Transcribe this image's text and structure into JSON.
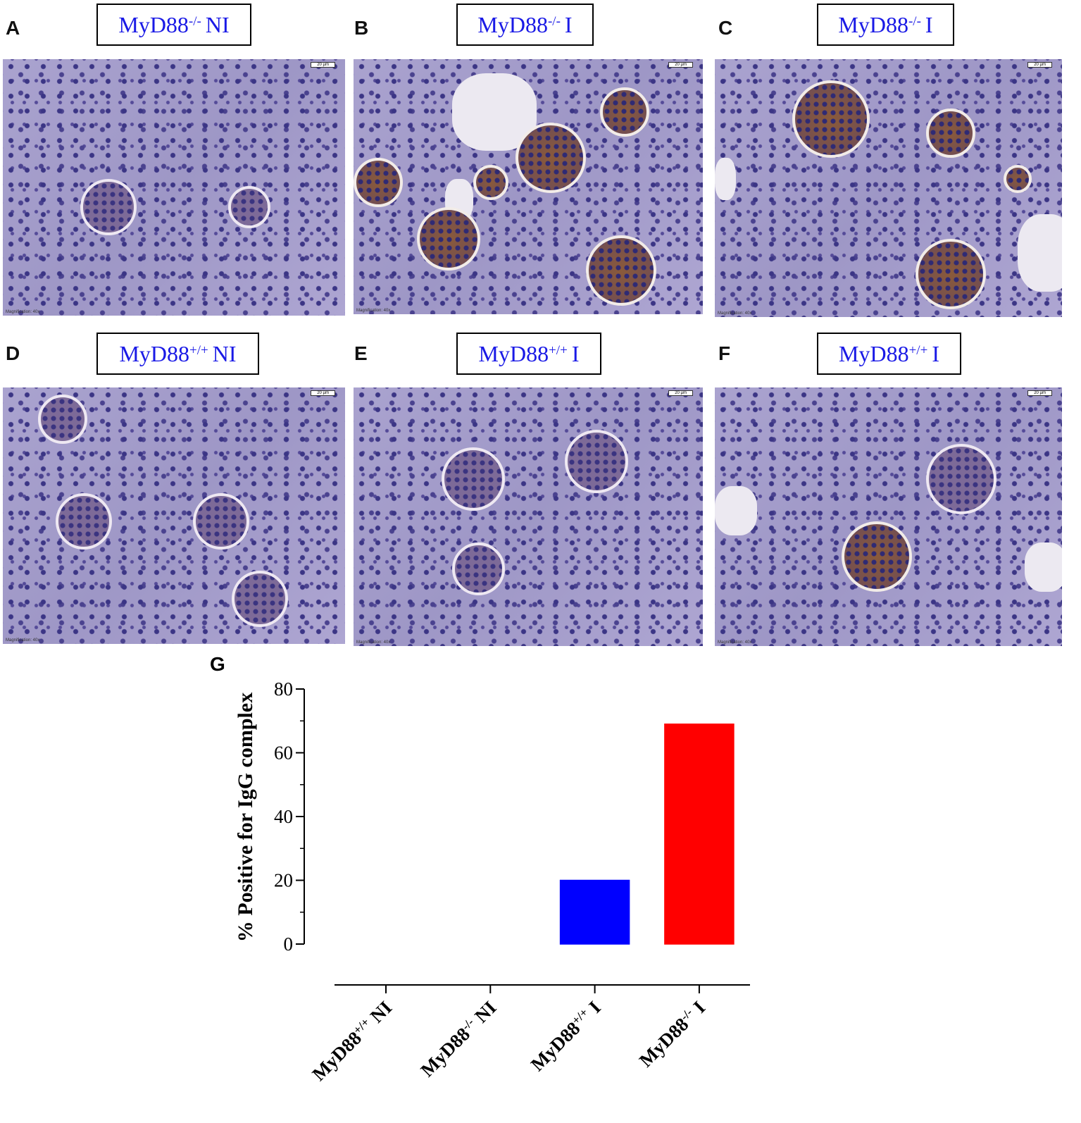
{
  "magnification": "Magnification: 40x",
  "scale_label": "20 µm",
  "panels": [
    {
      "letter": "A",
      "title": {
        "base": "MyD88",
        "sup": "-/-",
        "suffix": "NI"
      }
    },
    {
      "letter": "B",
      "title": {
        "base": "MyD88",
        "sup": "-/-",
        "suffix": "I"
      }
    },
    {
      "letter": "C",
      "title": {
        "base": "MyD88",
        "sup": "-/-",
        "suffix": "I"
      }
    },
    {
      "letter": "D",
      "title": {
        "base": "MyD88",
        "sup": "+/+",
        "suffix": "NI"
      }
    },
    {
      "letter": "E",
      "title": {
        "base": "MyD88",
        "sup": "+/+",
        "suffix": "I"
      }
    },
    {
      "letter": "F",
      "title": {
        "base": "MyD88",
        "sup": "+/+",
        "suffix": "I"
      }
    }
  ],
  "chart_data": {
    "type": "bar",
    "panel_letter": "G",
    "y_label": "% Positive for IgG complex",
    "categories": [
      {
        "base": "MyD88",
        "sup": "+/+",
        "suffix": "NI"
      },
      {
        "base": "MyD88",
        "sup": "-/-",
        "suffix": "NI"
      },
      {
        "base": "MyD88",
        "sup": "+/+",
        "suffix": "I"
      },
      {
        "base": "MyD88",
        "sup": "-/-",
        "suffix": "I"
      }
    ],
    "values": [
      0,
      0,
      20,
      69
    ],
    "colors": [
      "#a9d6f2",
      "#f2c4c4",
      "#0000ff",
      "#ff0000"
    ],
    "ylim": [
      0,
      80
    ],
    "yticks": [
      0,
      20,
      40,
      60,
      80
    ],
    "minor_ticks": true
  }
}
